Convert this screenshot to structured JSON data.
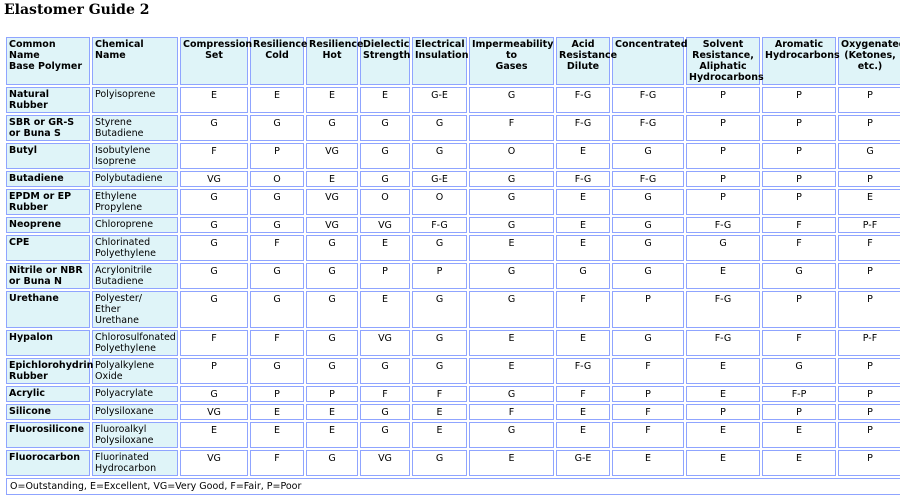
{
  "title": "Elastomer Guide 2",
  "columns": [
    "Common Name\nBase Polymer",
    "Chemical Name",
    "Compression\nSet",
    "Resilience\nCold",
    "Resilience\nHot",
    "Dielectic\nStrength",
    "Electrical\nInsulation",
    "Impermeability\nto\nGases",
    "Acid\nResistance\nDilute",
    "Concentrated",
    "Solvent\nResistance,\nAliphatic\nHydrocarbons",
    "Aromatic\nHydrocarbons",
    "Oxygenated\n(Ketones,\netc.)"
  ],
  "rows": [
    {
      "name": "Natural Rubber",
      "chem": "Polyisoprene",
      "vals": [
        "E",
        "E",
        "E",
        "E",
        "G-E",
        "G",
        "F-G",
        "F-G",
        "P",
        "P",
        "P"
      ]
    },
    {
      "name": "SBR or GR-S or Buna S",
      "chem": "Styrene\nButadiene",
      "vals": [
        "G",
        "G",
        "G",
        "G",
        "G",
        "F",
        "F-G",
        "F-G",
        "P",
        "P",
        "P"
      ]
    },
    {
      "name": "Butyl",
      "chem": "Isobutylene\nIsoprene",
      "vals": [
        "F",
        "P",
        "VG",
        "G",
        "G",
        "O",
        "E",
        "G",
        "P",
        "P",
        "G"
      ]
    },
    {
      "name": "Butadiene",
      "chem": "Polybutadiene",
      "vals": [
        "VG",
        "O",
        "E",
        "G",
        "G-E",
        "G",
        "F-G",
        "F-G",
        "P",
        "P",
        "P"
      ]
    },
    {
      "name": "EPDM or EP Rubber",
      "chem": "Ethylene\nPropylene",
      "vals": [
        "G",
        "G",
        "VG",
        "O",
        "O",
        "G",
        "E",
        "G",
        "P",
        "P",
        "E"
      ]
    },
    {
      "name": "Neoprene",
      "chem": "Chloroprene",
      "vals": [
        "G",
        "G",
        "VG",
        "VG",
        "F-G",
        "G",
        "E",
        "G",
        "F-G",
        "F",
        "P-F"
      ]
    },
    {
      "name": "CPE",
      "chem": "Chlorinated\nPolyethylene",
      "vals": [
        "G",
        "F",
        "G",
        "E",
        "G",
        "E",
        "E",
        "G",
        "G",
        "F",
        "F"
      ]
    },
    {
      "name": "Nitrile or NBR or Buna N",
      "chem": "Acrylonitrile\nButadiene",
      "vals": [
        "G",
        "G",
        "G",
        "P",
        "P",
        "G",
        "G",
        "G",
        "E",
        "G",
        "P"
      ]
    },
    {
      "name": "Urethane",
      "chem": "Polyester/\nEther\nUrethane",
      "vals": [
        "G",
        "G",
        "G",
        "E",
        "G",
        "G",
        "F",
        "P",
        "F-G",
        "P",
        "P"
      ]
    },
    {
      "name": "Hypalon",
      "chem": "Chlorosulfonated\nPolyethylene",
      "vals": [
        "F",
        "F",
        "G",
        "VG",
        "G",
        "E",
        "E",
        "G",
        "F-G",
        "F",
        "P-F"
      ]
    },
    {
      "name": "Epichlorohydrin Rubber",
      "chem": "Polyalkylene\nOxide",
      "vals": [
        "P",
        "G",
        "G",
        "G",
        "G",
        "E",
        "F-G",
        "F",
        "E",
        "G",
        "P"
      ]
    },
    {
      "name": "Acrylic",
      "chem": "Polyacrylate",
      "vals": [
        "G",
        "P",
        "P",
        "F",
        "F",
        "G",
        "F",
        "P",
        "E",
        "F-P",
        "P"
      ]
    },
    {
      "name": "Silicone",
      "chem": "Polysiloxane",
      "vals": [
        "VG",
        "E",
        "E",
        "G",
        "E",
        "F",
        "E",
        "F",
        "P",
        "P",
        "P"
      ]
    },
    {
      "name": "Fluorosilicone",
      "chem": "Fluoroalkyl\nPolysiloxane",
      "vals": [
        "E",
        "E",
        "E",
        "G",
        "E",
        "G",
        "E",
        "F",
        "E",
        "E",
        "P"
      ]
    },
    {
      "name": "Fluorocarbon",
      "chem": "Fluorinated\nHydrocarbon",
      "vals": [
        "VG",
        "F",
        "G",
        "VG",
        "G",
        "E",
        "G-E",
        "E",
        "E",
        "E",
        "P"
      ]
    }
  ],
  "legend": "O=Outstanding, E=Excellent, VG=Very Good, F=Fair, P=Poor"
}
